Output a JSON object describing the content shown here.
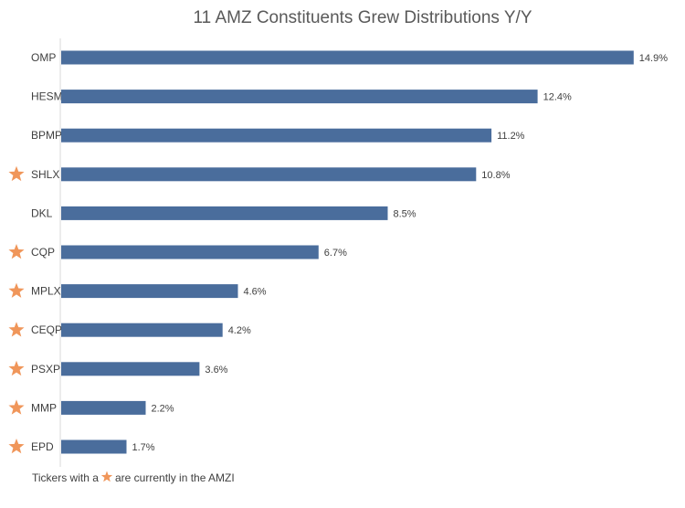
{
  "chart_data": {
    "type": "bar",
    "orientation": "horizontal",
    "title": "11 AMZ Constituents Grew Distributions Y/Y",
    "categories": [
      "OMP",
      "HESM",
      "BPMP",
      "SHLX",
      "DKL",
      "CQP",
      "MPLX",
      "CEQP",
      "PSXP",
      "MMP",
      "EPD"
    ],
    "values": [
      14.9,
      12.4,
      11.2,
      10.8,
      8.5,
      6.7,
      4.6,
      4.2,
      3.6,
      2.2,
      1.7
    ],
    "value_labels": [
      "14.9%",
      "12.4%",
      "11.2%",
      "10.8%",
      "8.5%",
      "6.7%",
      "4.6%",
      "4.2%",
      "3.6%",
      "2.2%",
      "1.7%"
    ],
    "starred": [
      false,
      false,
      false,
      true,
      false,
      true,
      true,
      true,
      true,
      true,
      true
    ],
    "xlim": [
      0,
      15.5
    ],
    "grid": false,
    "bar_color": "#4a6d9c",
    "star_color": "#f0965a",
    "axis_color": "#d9d9d9",
    "footnote": {
      "before": "Tickers with a",
      "after": "are currently in the AMZI"
    }
  }
}
